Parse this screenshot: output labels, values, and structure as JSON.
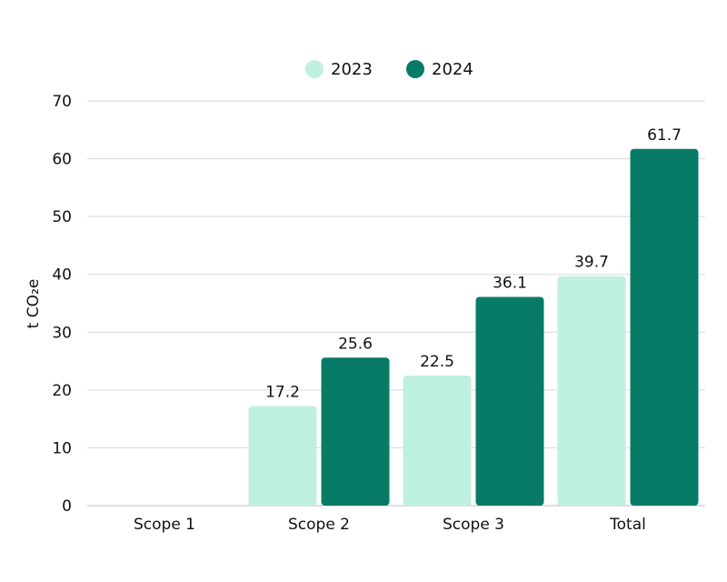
{
  "chart_data": {
    "type": "bar",
    "categories": [
      "Scope 1",
      "Scope 2",
      "Scope 3",
      "Total"
    ],
    "series": [
      {
        "name": "2023",
        "color": "#bff0df",
        "values": [
          null,
          17.2,
          22.5,
          39.7
        ],
        "labels": [
          "",
          "17.2",
          "22.5",
          "39.7"
        ]
      },
      {
        "name": "2024",
        "color": "#087b67",
        "values": [
          null,
          25.6,
          36.1,
          61.7
        ],
        "labels": [
          "",
          "25.6",
          "36.1",
          "61.7"
        ]
      }
    ],
    "title": "",
    "xlabel": "",
    "ylabel": "t CO₂e",
    "ylim": [
      0,
      70
    ],
    "yticks": [
      0,
      10,
      20,
      30,
      40,
      50,
      60,
      70
    ],
    "ytick_labels": [
      "0",
      "10",
      "20",
      "30",
      "40",
      "50",
      "60",
      "70"
    ],
    "grid": true,
    "legend_position": "top-center"
  }
}
